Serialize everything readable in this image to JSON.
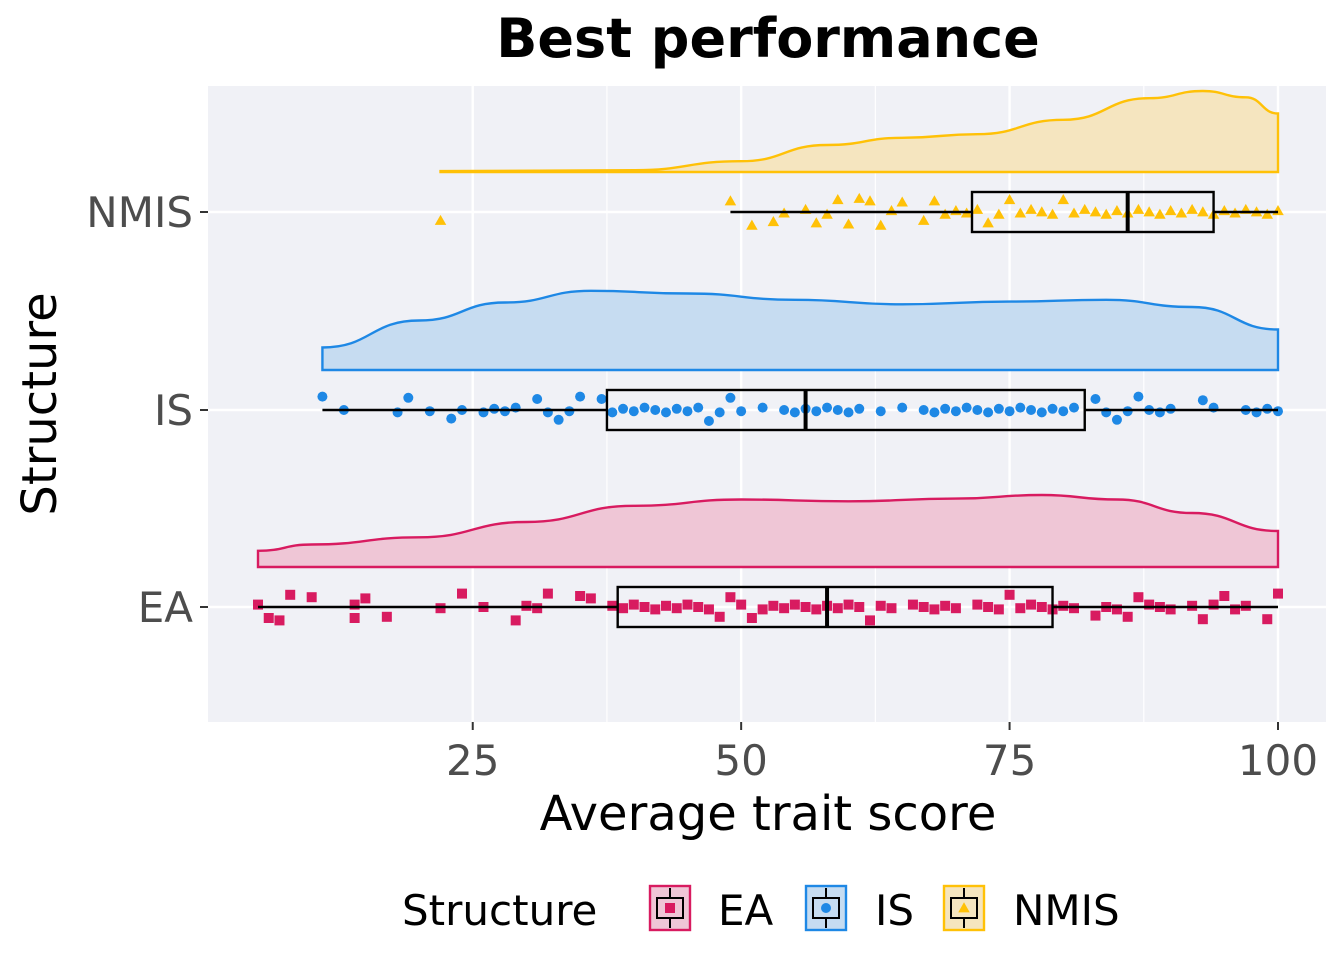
{
  "chart_data": {
    "type": "raincloud",
    "title": "Best performance",
    "xlabel": "Average trait score",
    "ylabel": "Structure",
    "xlim": [
      2,
      104
    ],
    "x_ticks": [
      25,
      50,
      75,
      100
    ],
    "categories": [
      "EA",
      "IS",
      "NMIS"
    ],
    "grid": true,
    "legend_position": "bottom",
    "legend_title": "Structure",
    "series": [
      {
        "name": "EA",
        "color": "#d81b60",
        "fill": "#efc6d6",
        "marker": "square",
        "box": {
          "min": 5,
          "q1": 38.5,
          "median": 58,
          "q3": 79,
          "max": 100
        },
        "density": [
          [
            5,
            0.18
          ],
          [
            10,
            0.25
          ],
          [
            20,
            0.33
          ],
          [
            30,
            0.5
          ],
          [
            40,
            0.68
          ],
          [
            50,
            0.75
          ],
          [
            60,
            0.73
          ],
          [
            70,
            0.76
          ],
          [
            78,
            0.8
          ],
          [
            85,
            0.75
          ],
          [
            92,
            0.6
          ],
          [
            100,
            0.4
          ]
        ],
        "points": [
          [
            5,
            0
          ],
          [
            6,
            1
          ],
          [
            7,
            1
          ],
          [
            8,
            -1
          ],
          [
            10,
            -1
          ],
          [
            14,
            0
          ],
          [
            14,
            1
          ],
          [
            15,
            -1
          ],
          [
            17,
            1
          ],
          [
            22,
            0
          ],
          [
            24,
            -1
          ],
          [
            26,
            0
          ],
          [
            29,
            1
          ],
          [
            30,
            0
          ],
          [
            31,
            0
          ],
          [
            32,
            -1
          ],
          [
            35,
            -1
          ],
          [
            36,
            -1
          ],
          [
            38,
            0
          ],
          [
            39,
            0
          ],
          [
            40,
            0
          ],
          [
            41,
            0
          ],
          [
            42,
            0
          ],
          [
            43,
            0
          ],
          [
            44,
            0
          ],
          [
            45,
            0
          ],
          [
            46,
            0
          ],
          [
            47,
            0
          ],
          [
            48,
            1
          ],
          [
            49,
            -1
          ],
          [
            50,
            0
          ],
          [
            51,
            1
          ],
          [
            52,
            0
          ],
          [
            53,
            0
          ],
          [
            54,
            0
          ],
          [
            55,
            0
          ],
          [
            56,
            0
          ],
          [
            57,
            0
          ],
          [
            58,
            0
          ],
          [
            59,
            0
          ],
          [
            60,
            0
          ],
          [
            61,
            0
          ],
          [
            62,
            1
          ],
          [
            63,
            0
          ],
          [
            64,
            0
          ],
          [
            66,
            0
          ],
          [
            67,
            0
          ],
          [
            68,
            0
          ],
          [
            69,
            0
          ],
          [
            70,
            0
          ],
          [
            72,
            0
          ],
          [
            73,
            0
          ],
          [
            74,
            0
          ],
          [
            75,
            -1
          ],
          [
            76,
            0
          ],
          [
            77,
            0
          ],
          [
            78,
            0
          ],
          [
            79,
            0
          ],
          [
            80,
            0
          ],
          [
            81,
            0
          ],
          [
            83,
            1
          ],
          [
            84,
            0
          ],
          [
            85,
            0
          ],
          [
            86,
            1
          ],
          [
            87,
            -1
          ],
          [
            88,
            0
          ],
          [
            89,
            0
          ],
          [
            90,
            0
          ],
          [
            92,
            0
          ],
          [
            93,
            1
          ],
          [
            94,
            0
          ],
          [
            95,
            -1
          ],
          [
            96,
            0
          ],
          [
            97,
            0
          ],
          [
            99,
            1
          ],
          [
            100,
            -1
          ]
        ]
      },
      {
        "name": "IS",
        "color": "#1e88e5",
        "fill": "#c6dcf1",
        "marker": "circle",
        "box": {
          "min": 11,
          "q1": 37.5,
          "median": 56,
          "q3": 82,
          "max": 100
        },
        "density": [
          [
            11,
            0.25
          ],
          [
            20,
            0.55
          ],
          [
            28,
            0.75
          ],
          [
            36,
            0.88
          ],
          [
            45,
            0.85
          ],
          [
            55,
            0.78
          ],
          [
            65,
            0.73
          ],
          [
            75,
            0.76
          ],
          [
            84,
            0.78
          ],
          [
            92,
            0.7
          ],
          [
            100,
            0.45
          ]
        ],
        "points": [
          [
            11,
            -1
          ],
          [
            13,
            0
          ],
          [
            18,
            0
          ],
          [
            19,
            -1
          ],
          [
            21,
            0
          ],
          [
            23,
            1
          ],
          [
            24,
            0
          ],
          [
            26,
            0
          ],
          [
            27,
            0
          ],
          [
            28,
            0
          ],
          [
            29,
            0
          ],
          [
            31,
            -1
          ],
          [
            32,
            0
          ],
          [
            33,
            1
          ],
          [
            34,
            0
          ],
          [
            35,
            -1
          ],
          [
            37,
            -1
          ],
          [
            38,
            0
          ],
          [
            39,
            0
          ],
          [
            40,
            0
          ],
          [
            41,
            0
          ],
          [
            42,
            0
          ],
          [
            43,
            0
          ],
          [
            44,
            0
          ],
          [
            45,
            0
          ],
          [
            46,
            0
          ],
          [
            47,
            1
          ],
          [
            48,
            0
          ],
          [
            49,
            -1
          ],
          [
            50,
            0
          ],
          [
            52,
            0
          ],
          [
            54,
            0
          ],
          [
            55,
            0
          ],
          [
            56,
            0
          ],
          [
            57,
            0
          ],
          [
            58,
            0
          ],
          [
            59,
            0
          ],
          [
            60,
            0
          ],
          [
            61,
            0
          ],
          [
            63,
            0
          ],
          [
            65,
            0
          ],
          [
            67,
            0
          ],
          [
            68,
            0
          ],
          [
            69,
            0
          ],
          [
            70,
            0
          ],
          [
            71,
            0
          ],
          [
            72,
            0
          ],
          [
            73,
            0
          ],
          [
            74,
            0
          ],
          [
            75,
            0
          ],
          [
            76,
            0
          ],
          [
            77,
            0
          ],
          [
            78,
            0
          ],
          [
            79,
            0
          ],
          [
            80,
            0
          ],
          [
            81,
            0
          ],
          [
            83,
            -1
          ],
          [
            84,
            0
          ],
          [
            85,
            1
          ],
          [
            86,
            0
          ],
          [
            87,
            -1
          ],
          [
            88,
            0
          ],
          [
            89,
            0
          ],
          [
            90,
            0
          ],
          [
            93,
            -1
          ],
          [
            94,
            0
          ],
          [
            97,
            0
          ],
          [
            98,
            0
          ],
          [
            99,
            0
          ],
          [
            100,
            0
          ]
        ]
      },
      {
        "name": "NMIS",
        "color": "#ffc107",
        "fill": "#f5e5bf",
        "marker": "triangle",
        "box": {
          "min": 49,
          "q1": 71.5,
          "median": 86,
          "q3": 94,
          "max": 100
        },
        "density": [
          [
            22,
            0.01
          ],
          [
            40,
            0.02
          ],
          [
            50,
            0.12
          ],
          [
            58,
            0.3
          ],
          [
            65,
            0.38
          ],
          [
            72,
            0.42
          ],
          [
            80,
            0.58
          ],
          [
            88,
            0.82
          ],
          [
            93,
            0.9
          ],
          [
            97,
            0.83
          ],
          [
            100,
            0.65
          ]
        ],
        "points": [
          [
            22,
            1
          ],
          [
            49,
            -1
          ],
          [
            51,
            1
          ],
          [
            53,
            1
          ],
          [
            54,
            0
          ],
          [
            56,
            0
          ],
          [
            57,
            1
          ],
          [
            58,
            0
          ],
          [
            59,
            -1
          ],
          [
            60,
            1
          ],
          [
            61,
            -1
          ],
          [
            62,
            -1
          ],
          [
            63,
            1
          ],
          [
            64,
            0
          ],
          [
            65,
            -1
          ],
          [
            67,
            1
          ],
          [
            68,
            -1
          ],
          [
            69,
            0
          ],
          [
            70,
            0
          ],
          [
            71,
            0
          ],
          [
            72,
            0
          ],
          [
            73,
            1
          ],
          [
            74,
            0
          ],
          [
            75,
            -1
          ],
          [
            76,
            0
          ],
          [
            77,
            0
          ],
          [
            78,
            0
          ],
          [
            79,
            0
          ],
          [
            80,
            -1
          ],
          [
            81,
            0
          ],
          [
            82,
            0
          ],
          [
            83,
            0
          ],
          [
            84,
            0
          ],
          [
            85,
            0
          ],
          [
            86,
            0
          ],
          [
            87,
            0
          ],
          [
            88,
            0
          ],
          [
            89,
            0
          ],
          [
            90,
            0
          ],
          [
            91,
            0
          ],
          [
            92,
            0
          ],
          [
            93,
            0
          ],
          [
            94,
            0
          ],
          [
            95,
            0
          ],
          [
            96,
            0
          ],
          [
            97,
            0
          ],
          [
            98,
            0
          ],
          [
            99,
            0
          ],
          [
            100,
            0
          ]
        ]
      }
    ]
  }
}
